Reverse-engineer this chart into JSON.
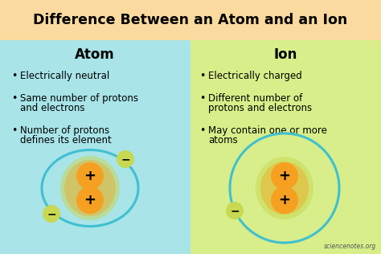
{
  "title": "Difference Between an Atom and an Ion",
  "title_bg": "#FADA9E",
  "left_bg": "#A8E4E8",
  "right_bg": "#D8EE8A",
  "left_header": "Atom",
  "right_header": "Ion",
  "left_bullets": [
    "Electrically neutral",
    "Same number of protons\nand electrons",
    "Number of protons\ndefines its element"
  ],
  "right_bullets": [
    "Electrically charged",
    "Different number of\nprotons and electrons",
    "May contain one or more\natoms"
  ],
  "watermark": "sciencenotes.org",
  "nucleus_outer_color": "#C8D850",
  "nucleus_inner_color": "#F5A020",
  "orbit_color": "#40C0D0",
  "electron_color": "#C8D850"
}
